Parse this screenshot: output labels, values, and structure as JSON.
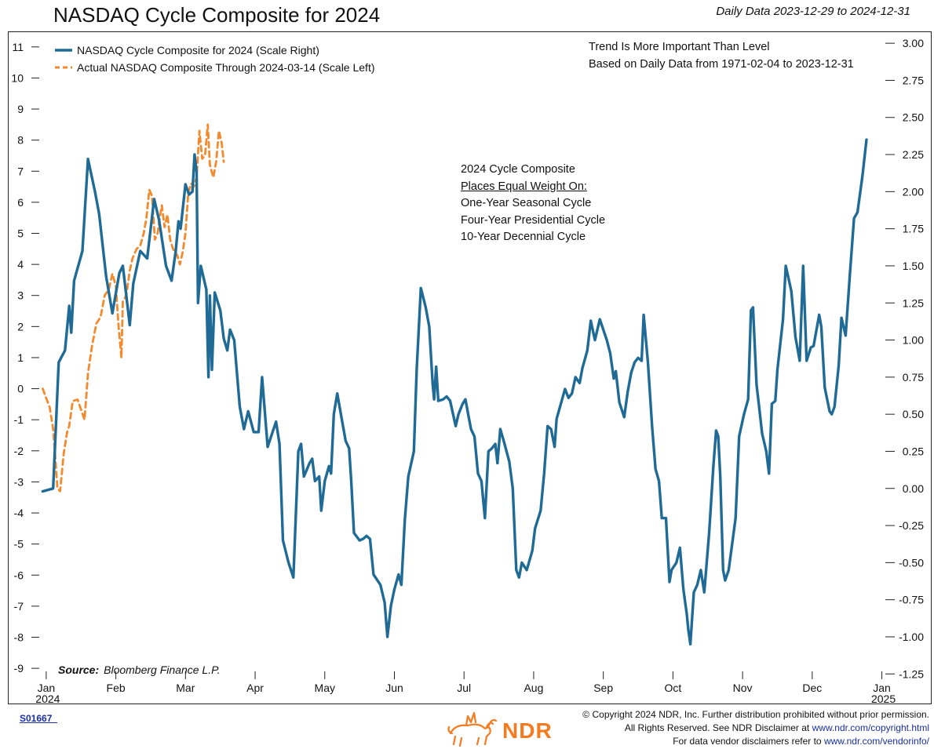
{
  "header": {
    "title": "NASDAQ Cycle Composite for 2024",
    "date_range": "Daily Data 2023-12-29 to 2024-12-31"
  },
  "notes": {
    "trend_line1": "Trend Is More Important Than Level",
    "trend_line2": "Based on Daily Data from 1971-02-04 to 2023-12-31",
    "composite_line1": "2024 Cycle Composite",
    "composite_line2": "Places Equal Weight On:",
    "composite_line3": "One-Year Seasonal Cycle",
    "composite_line4": "Four-Year Presidential Cycle",
    "composite_line5": "10-Year Decennial Cycle"
  },
  "source": {
    "label": "Source:",
    "value": "Bloomberg Finance L.P."
  },
  "footer": {
    "code": "S01667  ",
    "logo_text": "NDR",
    "copyright": "© Copyright 2024 NDR, Inc. Further distribution prohibited without prior permission.",
    "rights_prefix": "All Rights Reserved. See NDR Disclaimer at ",
    "rights_link": "www.ndr.com/copyright.html",
    "vendor_prefix": "For data vendor disclaimers refer to ",
    "vendor_link": "www.ndr.com/vendorinfo/"
  },
  "colors": {
    "composite": "#1f6b96",
    "actual": "#f28a2e"
  },
  "chart_data": {
    "type": "line",
    "title": "NASDAQ Cycle Composite for 2024",
    "x_ticks": [
      "Jan",
      "Feb",
      "Mar",
      "Apr",
      "May",
      "Jun",
      "Jul",
      "Aug",
      "Sep",
      "Oct",
      "Nov",
      "Dec",
      "Jan"
    ],
    "x_tick_years": [
      "2024",
      "",
      "",
      "",
      "",
      "",
      "",
      "",
      "",
      "",
      "",
      "",
      "2025"
    ],
    "xlim_month": [
      -0.1,
      12.05
    ],
    "left_axis": {
      "ylim": [
        -9.3,
        11.5
      ],
      "ticks": [
        11,
        10,
        9,
        8,
        7,
        6,
        5,
        4,
        3,
        2,
        1,
        0,
        -1,
        -2,
        -3,
        -4,
        -5,
        -6,
        -7,
        -8,
        -9
      ]
    },
    "right_axis": {
      "ylim": [
        -1.275,
        3.08
      ],
      "ticks": [
        "3.00",
        "2.75",
        "2.50",
        "2.25",
        "2.00",
        "1.75",
        "1.50",
        "1.25",
        "1.00",
        "0.75",
        "0.50",
        "0.25",
        "0.00",
        "-0.25",
        "-0.50",
        "-0.75",
        "-1.00",
        "-1.25"
      ]
    },
    "series": [
      {
        "name": "NASDAQ Cycle Composite for 2024 (Scale Right)",
        "axis": "right",
        "style": "solid",
        "points": [
          [
            -0.05,
            -0.02
          ],
          [
            0.1,
            0.0
          ],
          [
            0.18,
            0.85
          ],
          [
            0.27,
            0.93
          ],
          [
            0.33,
            1.23
          ],
          [
            0.36,
            1.05
          ],
          [
            0.4,
            1.4
          ],
          [
            0.52,
            1.6
          ],
          [
            0.6,
            2.22
          ],
          [
            0.7,
            2.0
          ],
          [
            0.76,
            1.85
          ],
          [
            0.86,
            1.43
          ],
          [
            0.95,
            1.18
          ],
          [
            1.05,
            1.45
          ],
          [
            1.1,
            1.5
          ],
          [
            1.2,
            1.1
          ],
          [
            1.25,
            1.38
          ],
          [
            1.35,
            1.6
          ],
          [
            1.45,
            1.55
          ],
          [
            1.55,
            1.95
          ],
          [
            1.62,
            1.81
          ],
          [
            1.72,
            1.5
          ],
          [
            1.8,
            1.4
          ],
          [
            1.86,
            1.6
          ],
          [
            1.9,
            1.8
          ],
          [
            1.93,
            1.75
          ],
          [
            2.0,
            2.05
          ],
          [
            2.05,
            1.98
          ],
          [
            2.1,
            2.0
          ],
          [
            2.13,
            2.25
          ],
          [
            2.16,
            2.13
          ],
          [
            2.18,
            1.25
          ],
          [
            2.22,
            1.5
          ],
          [
            2.3,
            1.34
          ],
          [
            2.33,
            0.75
          ],
          [
            2.35,
            1.3
          ],
          [
            2.38,
            0.8
          ],
          [
            2.42,
            1.32
          ],
          [
            2.5,
            1.2
          ],
          [
            2.55,
            1.01
          ],
          [
            2.6,
            0.93
          ],
          [
            2.64,
            1.07
          ],
          [
            2.7,
            1.0
          ],
          [
            2.78,
            0.55
          ],
          [
            2.84,
            0.4
          ],
          [
            2.9,
            0.52
          ],
          [
            2.98,
            0.38
          ],
          [
            3.05,
            0.38
          ],
          [
            3.1,
            0.75
          ],
          [
            3.18,
            0.28
          ],
          [
            3.3,
            0.45
          ],
          [
            3.35,
            0.3
          ],
          [
            3.4,
            -0.35
          ],
          [
            3.48,
            -0.5
          ],
          [
            3.55,
            -0.6
          ],
          [
            3.62,
            0.25
          ],
          [
            3.66,
            0.3
          ],
          [
            3.7,
            0.08
          ],
          [
            3.78,
            0.17
          ],
          [
            3.82,
            0.2
          ],
          [
            3.86,
            0.05
          ],
          [
            3.92,
            0.08
          ],
          [
            3.95,
            -0.15
          ],
          [
            4.0,
            0.05
          ],
          [
            4.06,
            0.15
          ],
          [
            4.09,
            0.1
          ],
          [
            4.13,
            0.5
          ],
          [
            4.18,
            0.64
          ],
          [
            4.25,
            0.45
          ],
          [
            4.3,
            0.32
          ],
          [
            4.35,
            0.27
          ],
          [
            4.38,
            0.05
          ],
          [
            4.42,
            -0.3
          ],
          [
            4.5,
            -0.35
          ],
          [
            4.55,
            -0.34
          ],
          [
            4.6,
            -0.32
          ],
          [
            4.65,
            -0.34
          ],
          [
            4.7,
            -0.58
          ],
          [
            4.8,
            -0.65
          ],
          [
            4.86,
            -0.77
          ],
          [
            4.9,
            -1.0
          ],
          [
            4.95,
            -0.79
          ],
          [
            5.0,
            -0.68
          ],
          [
            5.06,
            -0.58
          ],
          [
            5.1,
            -0.65
          ],
          [
            5.15,
            -0.21
          ],
          [
            5.2,
            0.08
          ],
          [
            5.28,
            0.25
          ],
          [
            5.32,
            0.8
          ],
          [
            5.38,
            1.35
          ],
          [
            5.45,
            1.22
          ],
          [
            5.5,
            1.09
          ],
          [
            5.55,
            0.7
          ],
          [
            5.57,
            0.6
          ],
          [
            5.6,
            0.82
          ],
          [
            5.63,
            0.59
          ],
          [
            5.7,
            0.6
          ],
          [
            5.75,
            0.62
          ],
          [
            5.8,
            0.59
          ],
          [
            5.88,
            0.42
          ],
          [
            5.92,
            0.5
          ],
          [
            5.98,
            0.57
          ],
          [
            6.02,
            0.6
          ],
          [
            6.06,
            0.5
          ],
          [
            6.1,
            0.4
          ],
          [
            6.15,
            0.35
          ],
          [
            6.2,
            0.1
          ],
          [
            6.25,
            0.05
          ],
          [
            6.3,
            -0.2
          ],
          [
            6.35,
            0.25
          ],
          [
            6.4,
            0.27
          ],
          [
            6.45,
            0.3
          ],
          [
            6.48,
            0.17
          ],
          [
            6.52,
            0.4
          ],
          [
            6.57,
            0.32
          ],
          [
            6.65,
            0.18
          ],
          [
            6.7,
            0.0
          ],
          [
            6.75,
            -0.55
          ],
          [
            6.79,
            -0.6
          ],
          [
            6.83,
            -0.5
          ],
          [
            6.9,
            -0.55
          ],
          [
            6.98,
            -0.42
          ],
          [
            7.02,
            -0.27
          ],
          [
            7.1,
            -0.15
          ],
          [
            7.15,
            0.1
          ],
          [
            7.2,
            0.42
          ],
          [
            7.25,
            0.4
          ],
          [
            7.3,
            0.28
          ],
          [
            7.33,
            0.47
          ],
          [
            7.36,
            0.52
          ],
          [
            7.45,
            0.67
          ],
          [
            7.5,
            0.61
          ],
          [
            7.55,
            0.64
          ],
          [
            7.6,
            0.75
          ],
          [
            7.66,
            0.71
          ],
          [
            7.7,
            0.81
          ],
          [
            7.77,
            0.93
          ],
          [
            7.82,
            1.13
          ],
          [
            7.88,
            1.0
          ],
          [
            7.95,
            1.14
          ],
          [
            8.05,
            1.0
          ],
          [
            8.1,
            0.91
          ],
          [
            8.15,
            0.74
          ],
          [
            8.18,
            0.79
          ],
          [
            8.23,
            0.58
          ],
          [
            8.3,
            0.48
          ],
          [
            8.35,
            0.65
          ],
          [
            8.4,
            0.78
          ],
          [
            8.45,
            0.85
          ],
          [
            8.5,
            0.88
          ],
          [
            8.55,
            0.86
          ],
          [
            8.58,
            1.17
          ],
          [
            8.64,
            0.85
          ],
          [
            8.7,
            0.42
          ],
          [
            8.75,
            0.13
          ],
          [
            8.8,
            0.05
          ],
          [
            8.84,
            -0.2
          ],
          [
            8.9,
            -0.2
          ],
          [
            8.95,
            -0.63
          ],
          [
            8.98,
            -0.55
          ],
          [
            9.05,
            -0.5
          ],
          [
            9.1,
            -0.4
          ],
          [
            9.15,
            -0.68
          ],
          [
            9.2,
            -0.85
          ],
          [
            9.22,
            -0.95
          ],
          [
            9.25,
            -1.05
          ],
          [
            9.3,
            -0.7
          ],
          [
            9.35,
            -0.65
          ],
          [
            9.4,
            -0.55
          ],
          [
            9.45,
            -0.7
          ],
          [
            9.52,
            -0.3
          ],
          [
            9.58,
            0.15
          ],
          [
            9.62,
            0.39
          ],
          [
            9.65,
            0.35
          ],
          [
            9.68,
            0.08
          ],
          [
            9.72,
            -0.55
          ],
          [
            9.75,
            -0.62
          ],
          [
            9.8,
            -0.55
          ],
          [
            9.9,
            -0.2
          ],
          [
            9.95,
            0.35
          ],
          [
            10.02,
            0.5
          ],
          [
            10.08,
            0.6
          ],
          [
            10.12,
            1.2
          ],
          [
            10.15,
            1.22
          ],
          [
            10.2,
            0.7
          ],
          [
            10.24,
            0.54
          ],
          [
            10.28,
            0.37
          ],
          [
            10.34,
            0.25
          ],
          [
            10.38,
            0.1
          ],
          [
            10.42,
            0.57
          ],
          [
            10.47,
            0.59
          ],
          [
            10.5,
            0.8
          ],
          [
            10.58,
            1.14
          ],
          [
            10.62,
            1.5
          ],
          [
            10.7,
            1.33
          ],
          [
            10.76,
            1.02
          ],
          [
            10.82,
            0.86
          ],
          [
            10.87,
            1.5
          ],
          [
            10.92,
            0.86
          ],
          [
            10.98,
            0.95
          ],
          [
            11.02,
            0.96
          ],
          [
            11.1,
            1.17
          ],
          [
            11.13,
            1.09
          ],
          [
            11.18,
            0.68
          ],
          [
            11.25,
            0.52
          ],
          [
            11.28,
            0.5
          ],
          [
            11.32,
            0.55
          ],
          [
            11.38,
            0.83
          ],
          [
            11.42,
            1.15
          ],
          [
            11.48,
            1.03
          ],
          [
            11.54,
            1.44
          ],
          [
            11.6,
            1.82
          ],
          [
            11.65,
            1.86
          ],
          [
            11.72,
            2.1
          ],
          [
            11.78,
            2.35
          ]
        ]
      },
      {
        "name": "Actual NASDAQ Composite Through 2024-03-14 (Scale Left)",
        "axis": "left",
        "style": "dashed",
        "points": [
          [
            -0.05,
            0.0
          ],
          [
            0.05,
            -0.6
          ],
          [
            0.1,
            -1.3
          ],
          [
            0.13,
            -2.2
          ],
          [
            0.16,
            -3.2
          ],
          [
            0.2,
            -3.3
          ],
          [
            0.25,
            -2.1
          ],
          [
            0.3,
            -1.4
          ],
          [
            0.33,
            -1.2
          ],
          [
            0.38,
            -0.4
          ],
          [
            0.45,
            -0.35
          ],
          [
            0.55,
            -1.0
          ],
          [
            0.6,
            0.5
          ],
          [
            0.66,
            1.4
          ],
          [
            0.72,
            2.1
          ],
          [
            0.78,
            2.3
          ],
          [
            0.84,
            3.0
          ],
          [
            0.9,
            3.2
          ],
          [
            0.95,
            3.7
          ],
          [
            1.0,
            3.3
          ],
          [
            1.04,
            2.0
          ],
          [
            1.08,
            1.0
          ],
          [
            1.1,
            2.8
          ],
          [
            1.15,
            3.0
          ],
          [
            1.2,
            3.8
          ],
          [
            1.24,
            4.2
          ],
          [
            1.3,
            4.5
          ],
          [
            1.35,
            4.6
          ],
          [
            1.4,
            5.0
          ],
          [
            1.44,
            5.5
          ],
          [
            1.48,
            6.4
          ],
          [
            1.52,
            6.2
          ],
          [
            1.56,
            4.8
          ],
          [
            1.6,
            5.0
          ],
          [
            1.63,
            5.5
          ],
          [
            1.66,
            5.9
          ],
          [
            1.7,
            5.2
          ],
          [
            1.74,
            5.6
          ],
          [
            1.78,
            4.8
          ],
          [
            1.82,
            4.5
          ],
          [
            1.88,
            4.3
          ],
          [
            1.92,
            4.0
          ],
          [
            1.96,
            4.4
          ],
          [
            2.0,
            5.0
          ],
          [
            2.04,
            6.3
          ],
          [
            2.08,
            6.6
          ],
          [
            2.12,
            6.5
          ],
          [
            2.16,
            6.8
          ],
          [
            2.2,
            8.3
          ],
          [
            2.24,
            7.4
          ],
          [
            2.28,
            7.5
          ],
          [
            2.32,
            8.5
          ],
          [
            2.35,
            7.2
          ],
          [
            2.4,
            6.8
          ],
          [
            2.44,
            7.3
          ],
          [
            2.48,
            8.3
          ],
          [
            2.52,
            7.9
          ],
          [
            2.55,
            7.3
          ]
        ]
      }
    ]
  }
}
